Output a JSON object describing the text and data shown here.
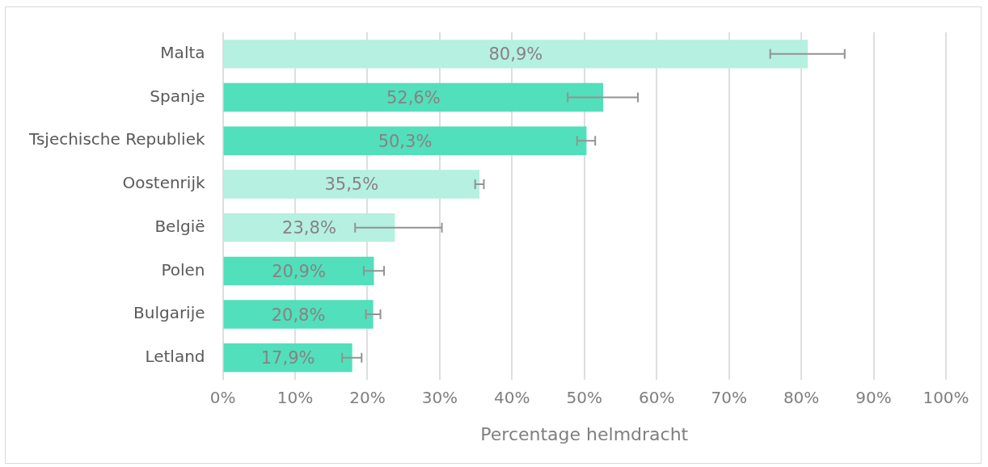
{
  "chart_data": {
    "type": "bar",
    "orientation": "horizontal",
    "xlabel": "Percentage helmdracht",
    "categories": [
      "Malta",
      "Spanje",
      "Tsjechische Republiek",
      "Oostenrijk",
      "België",
      "Polen",
      "Bulgarije",
      "Letland"
    ],
    "values": [
      80.9,
      52.6,
      50.3,
      35.5,
      23.8,
      20.9,
      20.8,
      17.9
    ],
    "colors": [
      "#b5f0e0",
      "#52dfbb",
      "#52dfbb",
      "#b5f0e0",
      "#b5f0e0",
      "#52dfbb",
      "#52dfbb",
      "#52dfbb"
    ],
    "value_labels": [
      "80,9%",
      "52,6%",
      "50,3%",
      "35,5%",
      "23,8%",
      "20,9%",
      "20,8%",
      "17,9%"
    ],
    "errors": [
      [
        75.7,
        86.0
      ],
      [
        47.7,
        57.4
      ],
      [
        49.0,
        51.5
      ],
      [
        34.9,
        36.1
      ],
      [
        18.3,
        30.3
      ],
      [
        19.5,
        22.3
      ],
      [
        19.8,
        21.8
      ],
      [
        16.5,
        19.2
      ]
    ],
    "xlim": [
      0,
      100
    ],
    "xticks": [
      {
        "value": 0,
        "label": "0%"
      },
      {
        "value": 10,
        "label": "10%"
      },
      {
        "value": 20,
        "label": "20%"
      },
      {
        "value": 30,
        "label": "30%"
      },
      {
        "value": 40,
        "label": "40%"
      },
      {
        "value": 50,
        "label": "50%"
      },
      {
        "value": 60,
        "label": "60%"
      },
      {
        "value": 70,
        "label": "70%"
      },
      {
        "value": 80,
        "label": "80%"
      },
      {
        "value": 90,
        "label": "90%"
      },
      {
        "value": 100,
        "label": "100%"
      }
    ],
    "grid": "x",
    "legend": false
  }
}
